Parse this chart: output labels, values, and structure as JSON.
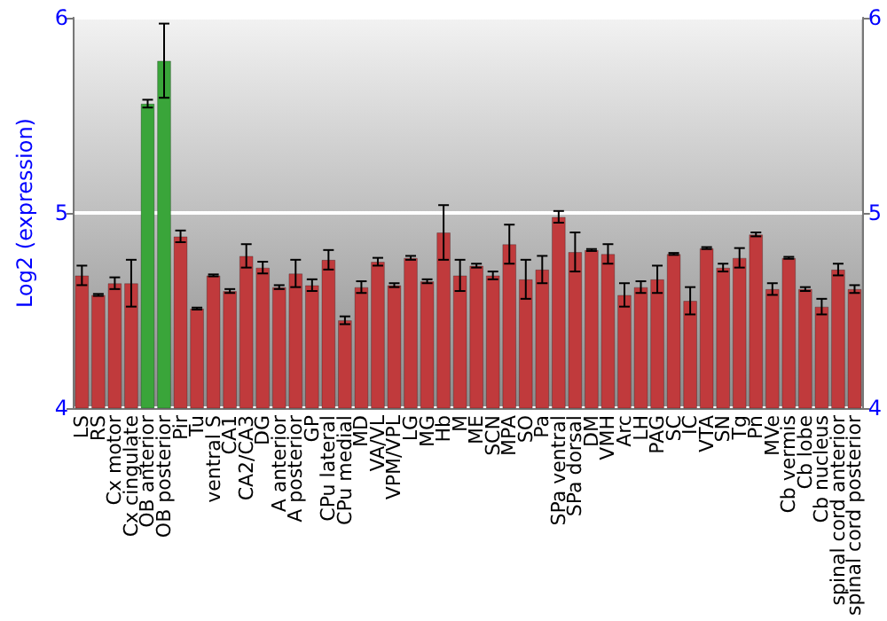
{
  "chart_data": {
    "type": "bar",
    "ylabel": "Log2 (expression)",
    "categories": [
      "LS",
      "RS",
      "Cx motor",
      "Cx cingulate",
      "OB anterior",
      "OB posterior",
      "Pir",
      "Tu",
      "ventral S",
      "CA1",
      "CA2/CA3",
      "DG",
      "A anterior",
      "A posterior",
      "GP",
      "CPu lateral",
      "CPu medial",
      "MD",
      "VA/VL",
      "VPM/VPL",
      "LG",
      "MG",
      "Hb",
      "M",
      "ME",
      "SCN",
      "MPA",
      "SO",
      "Pa",
      "SPa ventral",
      "SPa dorsal",
      "DM",
      "VMH",
      "Arc",
      "LH",
      "PAG",
      "SC",
      "IC",
      "VTA",
      "SN",
      "Tg",
      "Pn",
      "MVe",
      "Cb vermis",
      "Cb lobe",
      "Cb nucleus",
      "spinal cord anterior",
      "spinal cord posterior"
    ],
    "values": [
      4.68,
      4.58,
      4.64,
      4.64,
      5.56,
      5.78,
      4.88,
      4.51,
      4.68,
      4.6,
      4.78,
      4.72,
      4.62,
      4.69,
      4.63,
      4.76,
      4.45,
      4.62,
      4.75,
      4.63,
      4.77,
      4.65,
      4.9,
      4.68,
      4.73,
      4.68,
      4.84,
      4.66,
      4.71,
      4.98,
      4.8,
      4.81,
      4.79,
      4.58,
      4.62,
      4.66,
      4.79,
      4.55,
      4.82,
      4.72,
      4.77,
      4.89,
      4.61,
      4.77,
      4.61,
      4.52,
      4.71,
      4.61
    ],
    "errors": [
      0.05,
      0.005,
      0.03,
      0.12,
      0.02,
      0.19,
      0.03,
      0.005,
      0.005,
      0.01,
      0.06,
      0.03,
      0.01,
      0.07,
      0.03,
      0.05,
      0.02,
      0.03,
      0.02,
      0.01,
      0.01,
      0.01,
      0.14,
      0.08,
      0.01,
      0.02,
      0.1,
      0.1,
      0.07,
      0.03,
      0.1,
      0.005,
      0.05,
      0.06,
      0.03,
      0.07,
      0.005,
      0.07,
      0.005,
      0.02,
      0.05,
      0.01,
      0.03,
      0.005,
      0.01,
      0.04,
      0.03,
      0.02
    ],
    "colors": [
      "#c03a3c",
      "#c03a3c",
      "#c03a3c",
      "#c03a3c",
      "#3aa53a",
      "#3aa53a",
      "#c03a3c",
      "#c03a3c",
      "#c03a3c",
      "#c03a3c",
      "#c03a3c",
      "#c03a3c",
      "#c03a3c",
      "#c03a3c",
      "#c03a3c",
      "#c03a3c",
      "#c03a3c",
      "#c03a3c",
      "#c03a3c",
      "#c03a3c",
      "#c03a3c",
      "#c03a3c",
      "#c03a3c",
      "#c03a3c",
      "#c03a3c",
      "#c03a3c",
      "#c03a3c",
      "#c03a3c",
      "#c03a3c",
      "#c03a3c",
      "#c03a3c",
      "#c03a3c",
      "#c03a3c",
      "#c03a3c",
      "#c03a3c",
      "#c03a3c",
      "#c03a3c",
      "#c03a3c",
      "#c03a3c",
      "#c03a3c",
      "#c03a3c",
      "#c03a3c",
      "#c03a3c",
      "#c03a3c",
      "#c03a3c",
      "#c03a3c",
      "#c03a3c",
      "#c03a3c"
    ],
    "ylim": [
      4,
      6
    ],
    "yticks": [
      4,
      5,
      6
    ],
    "y2lim": [
      4,
      6
    ],
    "y2ticks": [
      4,
      5,
      6
    ],
    "grid": "y"
  }
}
